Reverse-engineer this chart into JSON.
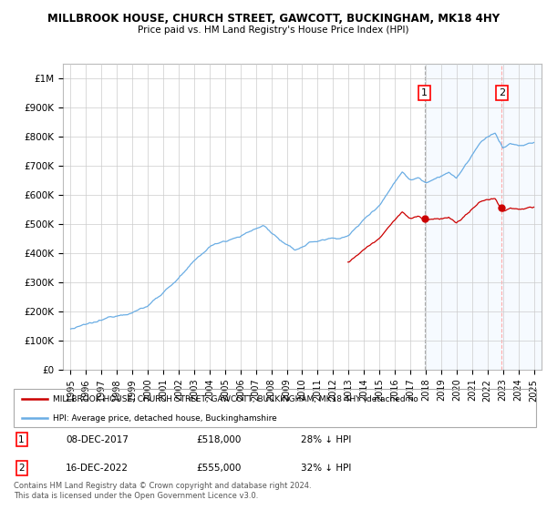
{
  "title": "MILLBROOK HOUSE, CHURCH STREET, GAWCOTT, BUCKINGHAM, MK18 4HY",
  "subtitle": "Price paid vs. HM Land Registry's House Price Index (HPI)",
  "legend_line1": "MILLBROOK HOUSE, CHURCH STREET, GAWCOTT, BUCKINGHAM, MK18 4HY (detached ho",
  "legend_line2": "HPI: Average price, detached house, Buckinghamshire",
  "footer": "Contains HM Land Registry data © Crown copyright and database right 2024.\nThis data is licensed under the Open Government Licence v3.0.",
  "transaction1_date": "08-DEC-2017",
  "transaction1_price": "£518,000",
  "transaction1_hpi": "28% ↓ HPI",
  "transaction2_date": "16-DEC-2022",
  "transaction2_price": "£555,000",
  "transaction2_hpi": "32% ↓ HPI",
  "hpi_color": "#6aade4",
  "price_color": "#cc0000",
  "vline1_color": "#aaaaaa",
  "vline2_color": "#ffaaaa",
  "shade_color": "#ddeeff",
  "background_color": "#ffffff",
  "grid_color": "#cccccc",
  "t1_year": 2017.92,
  "t2_year": 2022.92,
  "t1_price": 518000,
  "t2_price": 555000,
  "ylim_max": 1050000,
  "xstart": 1995,
  "xend": 2025
}
